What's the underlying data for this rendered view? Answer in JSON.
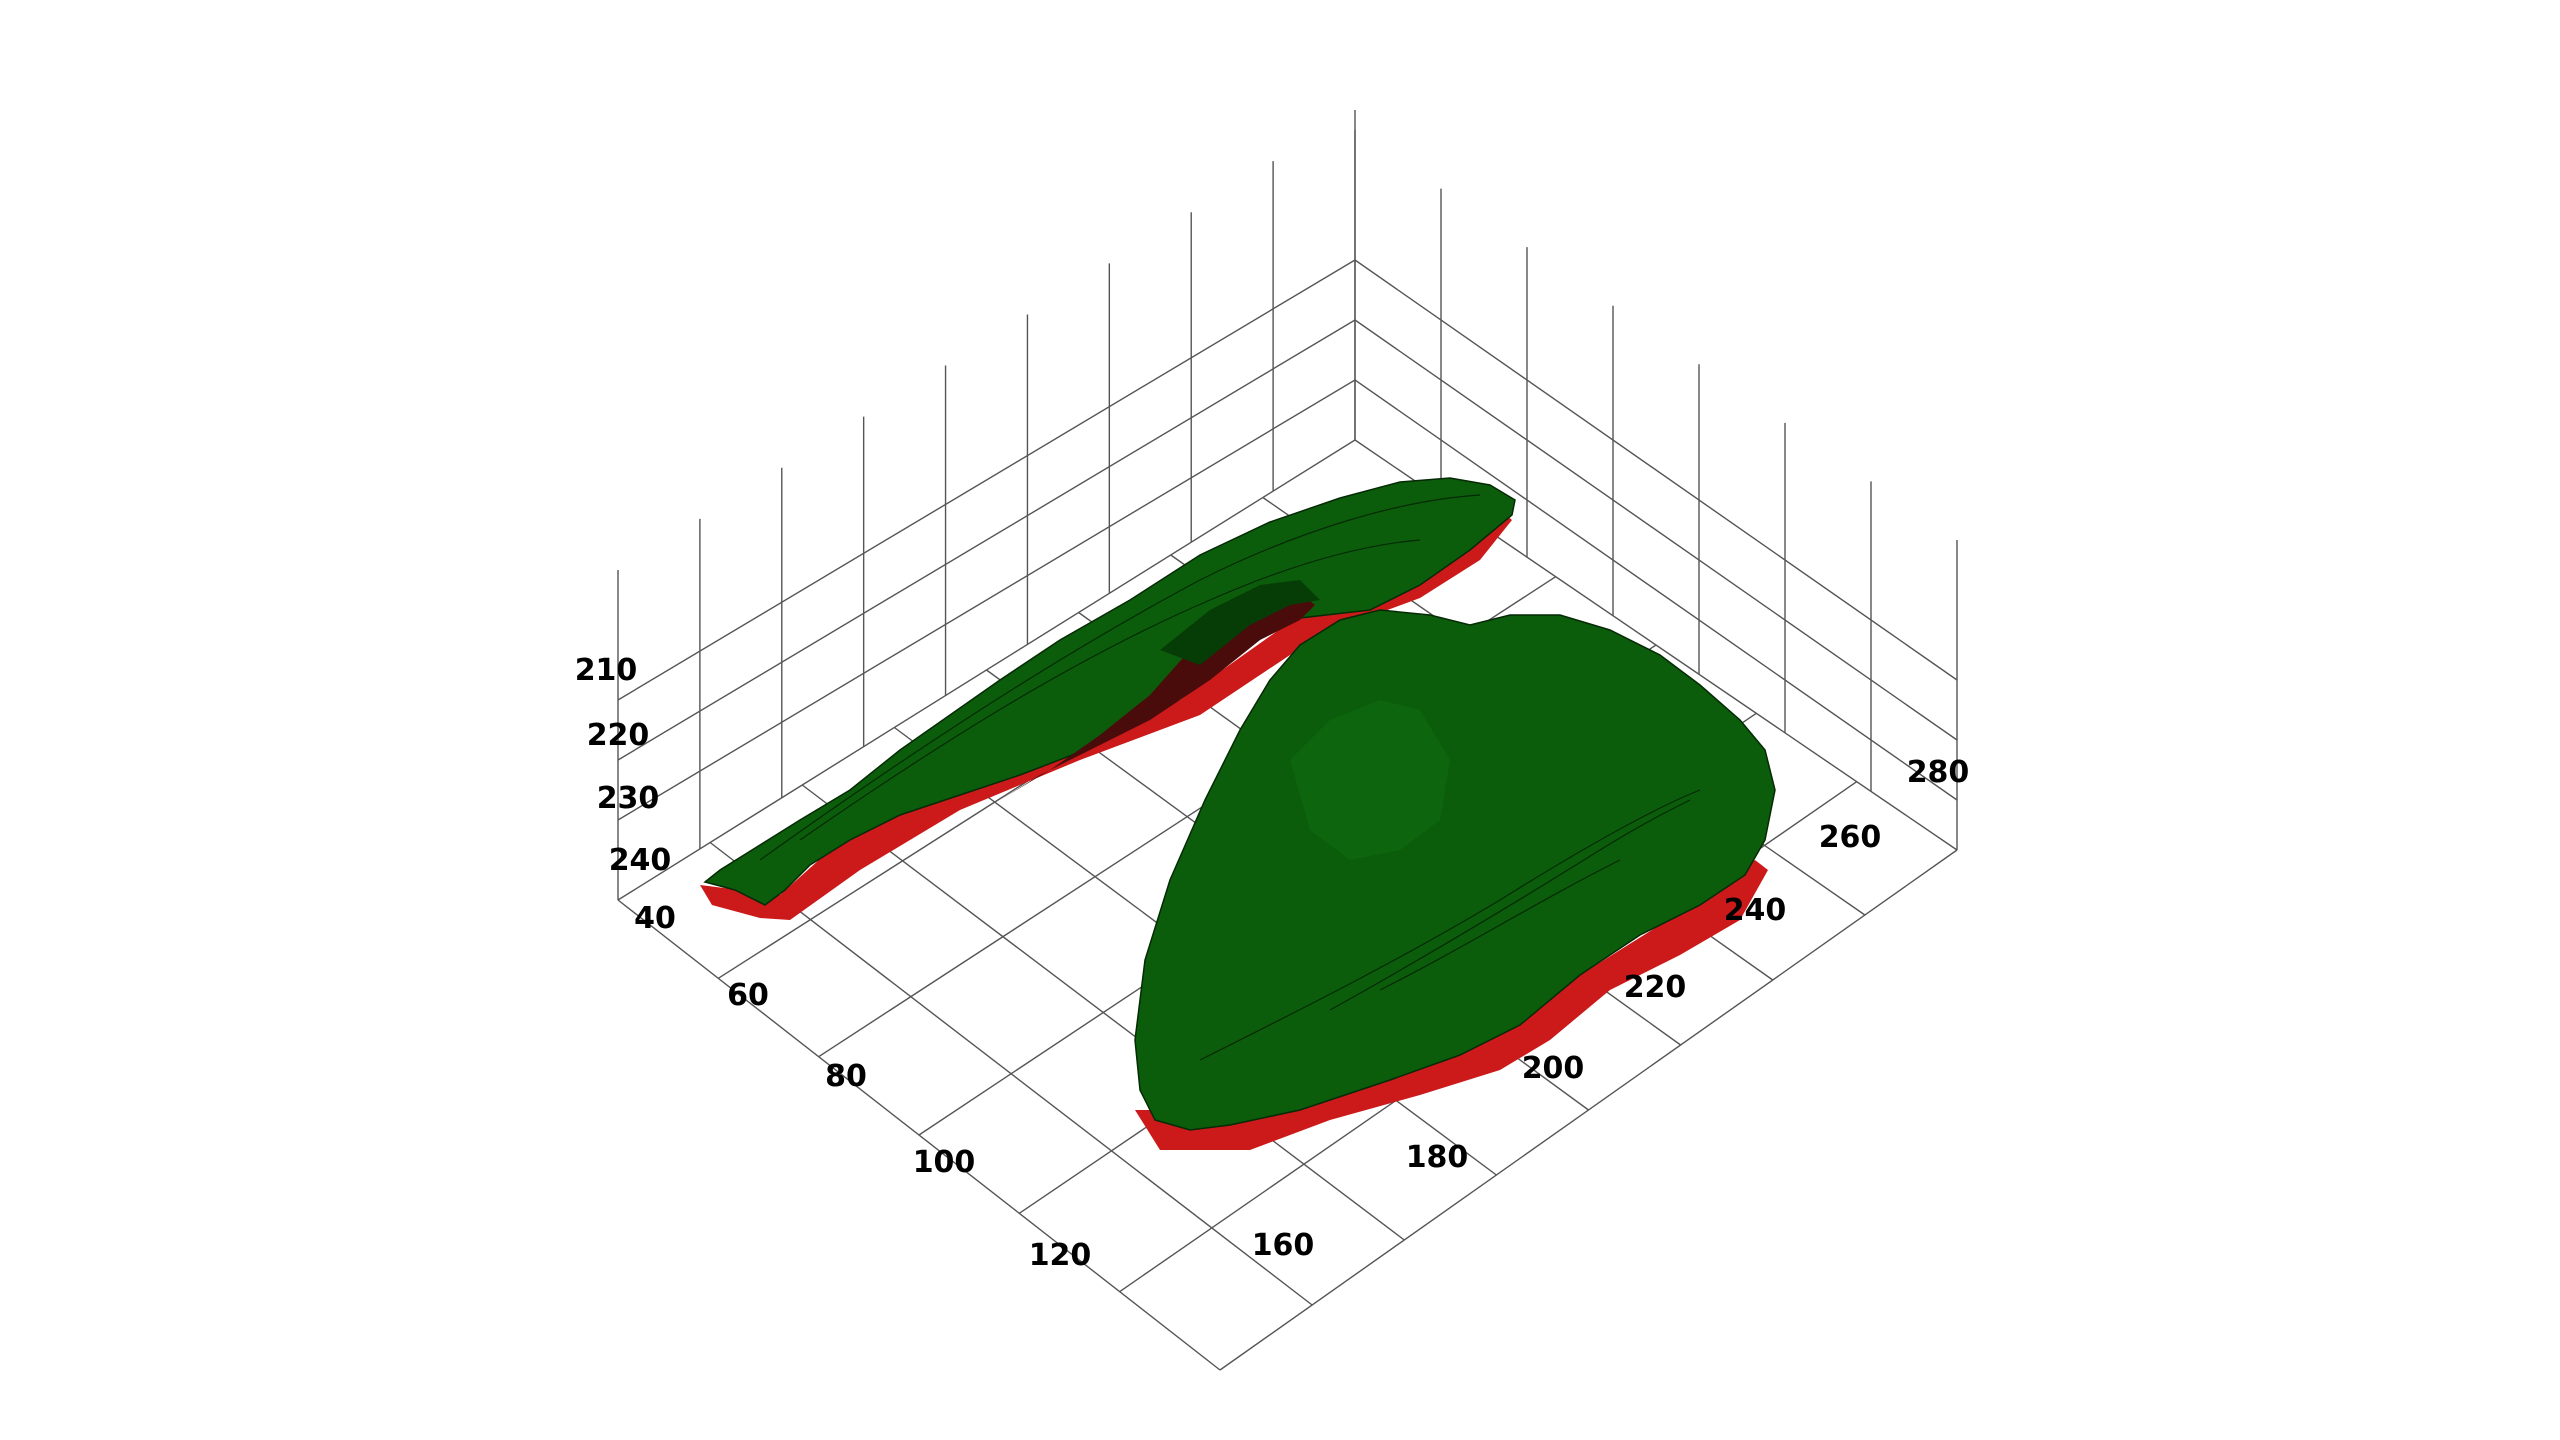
{
  "chart_data": {
    "type": "3d-surface",
    "title": "",
    "axes": {
      "x": {
        "label": "",
        "ticks": [
          "40",
          "60",
          "80",
          "100",
          "120"
        ]
      },
      "y": {
        "label": "",
        "ticks": [
          "160",
          "180",
          "200",
          "220",
          "240",
          "260",
          "280"
        ]
      },
      "z": {
        "label": "",
        "ticks": [
          "210",
          "220",
          "230",
          "240"
        ]
      }
    },
    "grid": true,
    "surfaces": [
      {
        "id": "left-structure",
        "top_color": "#0b5d0b",
        "edge_color": "#cc1a1a"
      },
      {
        "id": "right-structure",
        "top_color": "#0b5d0b",
        "edge_color": "#cc1a1a"
      }
    ],
    "colors": {
      "surface_top": "#0b5d0b",
      "surface_shadow": "#063d06",
      "surface_underside": "#cc1a1a",
      "grid": "#555555",
      "background": "#ffffff"
    }
  }
}
